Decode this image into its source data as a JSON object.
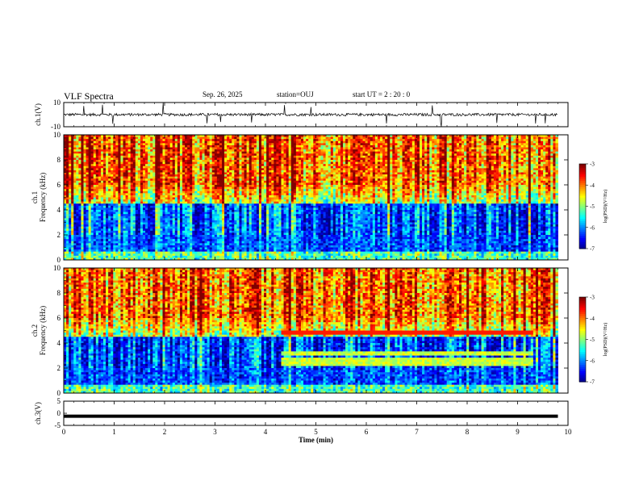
{
  "header": {
    "title": "VLF Spectra",
    "date": "Sep. 26, 2025",
    "station": "station=OUJ",
    "start": "start  UT =   2 : 20 : 0"
  },
  "chart_data": [
    {
      "type": "line",
      "panel": "ch1-waveform",
      "ylabel": "ch.1(V)",
      "ylim": [
        -10,
        10
      ],
      "yticks": [
        "10",
        "-10"
      ],
      "xlim": [
        0,
        10
      ],
      "description_series": "noisy waveform near 0 V with sporadic spikes"
    },
    {
      "type": "heatmap",
      "panel": "ch1-spectrogram",
      "ylabel_top": "ch.1",
      "ylabel": "Frequency (kHz)",
      "ylim": [
        0,
        10
      ],
      "yticks": [
        "0",
        "2",
        "4",
        "6",
        "8",
        "10"
      ],
      "xlim": [
        0,
        9.8
      ],
      "colorbar": {
        "label": "log(PSD)(V²/Hz)",
        "range": [
          -7,
          -3
        ],
        "ticks": [
          "-3",
          "-4",
          "-5",
          "-6",
          "-7"
        ]
      }
    },
    {
      "type": "heatmap",
      "panel": "ch2-spectrogram",
      "ylabel_top": "ch.2",
      "ylabel": "Frequency (kHz)",
      "ylim": [
        0,
        10
      ],
      "yticks": [
        "0",
        "2",
        "4",
        "6",
        "8",
        "10"
      ],
      "xlim": [
        0,
        9.8
      ],
      "colorbar": {
        "label": "log(PSD)(V²/Hz)",
        "range": [
          -7,
          -3
        ],
        "ticks": [
          "-3",
          "-4",
          "-5",
          "-6",
          "-7"
        ]
      }
    },
    {
      "type": "line",
      "panel": "ch3-waveform",
      "ylabel": "ch.3(V)",
      "ylim": [
        -5,
        5
      ],
      "yticks": [
        "5",
        "0",
        "-5"
      ],
      "xlim": [
        0,
        10
      ],
      "xlabel": "Time  (min)",
      "xticks": [
        "0",
        "1",
        "2",
        "3",
        "4",
        "5",
        "6",
        "7",
        "8",
        "9",
        "10"
      ],
      "series": [
        {
          "x": [
            0,
            9.8
          ],
          "y": [
            -1.2,
            -1.2
          ]
        }
      ]
    }
  ],
  "colors": {
    "axis": "#000000",
    "background": "#ffffff"
  }
}
